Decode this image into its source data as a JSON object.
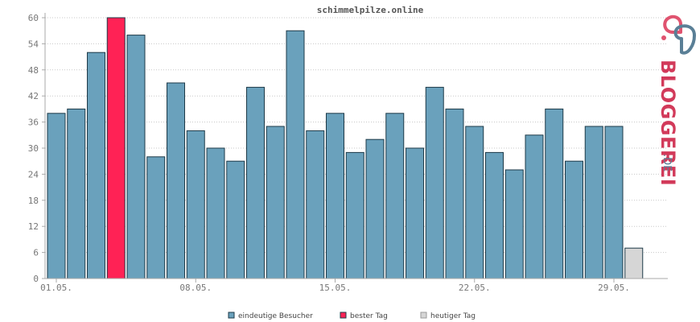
{
  "chart_data": {
    "type": "bar",
    "title": "schimmelpilze.online",
    "categories": [
      "01.05.",
      "02.05.",
      "03.05.",
      "04.05.",
      "05.05.",
      "06.05.",
      "07.05.",
      "08.05.",
      "09.05.",
      "10.05.",
      "11.05.",
      "12.05.",
      "13.05.",
      "14.05.",
      "15.05.",
      "16.05.",
      "17.05.",
      "18.05.",
      "19.05.",
      "20.05.",
      "21.05.",
      "22.05.",
      "23.05.",
      "24.05.",
      "25.05.",
      "26.05.",
      "27.05.",
      "28.05.",
      "29.05.",
      "30.05."
    ],
    "values": [
      38,
      39,
      52,
      60,
      56,
      28,
      45,
      34,
      30,
      27,
      44,
      35,
      57,
      34,
      38,
      29,
      32,
      38,
      30,
      44,
      39,
      35,
      29,
      25,
      33,
      39,
      27,
      35,
      35,
      7
    ],
    "highlight_best_index": 3,
    "today_index": 29,
    "ylim": [
      0,
      60
    ],
    "yticks": [
      0,
      6,
      12,
      18,
      24,
      30,
      36,
      42,
      48,
      54,
      60
    ],
    "xtick_labels": [
      {
        "index": 0,
        "label": "01.05."
      },
      {
        "index": 7,
        "label": "08.05."
      },
      {
        "index": 14,
        "label": "15.05."
      },
      {
        "index": 21,
        "label": "22.05."
      },
      {
        "index": 28,
        "label": "29.05."
      }
    ],
    "grid": true,
    "legend_position": "bottom",
    "colors": {
      "unique_visitors": "#6aa1bc",
      "best_day": "#ff2255",
      "today": "#d6d6d6",
      "bar_outline": "#1e3a48"
    },
    "legend": [
      {
        "key": "unique_visitors",
        "label": "eindeutige Besucher"
      },
      {
        "key": "best_day",
        "label": "bester Tag"
      },
      {
        "key": "today",
        "label": "heutiger Tag"
      }
    ]
  },
  "logo": {
    "text": "BLOGGEREI",
    "suffix": ".DE",
    "colors": {
      "main": "#d23a5a",
      "suffix": "#5a7f96",
      "icon_a": "#e0536f",
      "icon_b": "#5a7f96"
    }
  }
}
